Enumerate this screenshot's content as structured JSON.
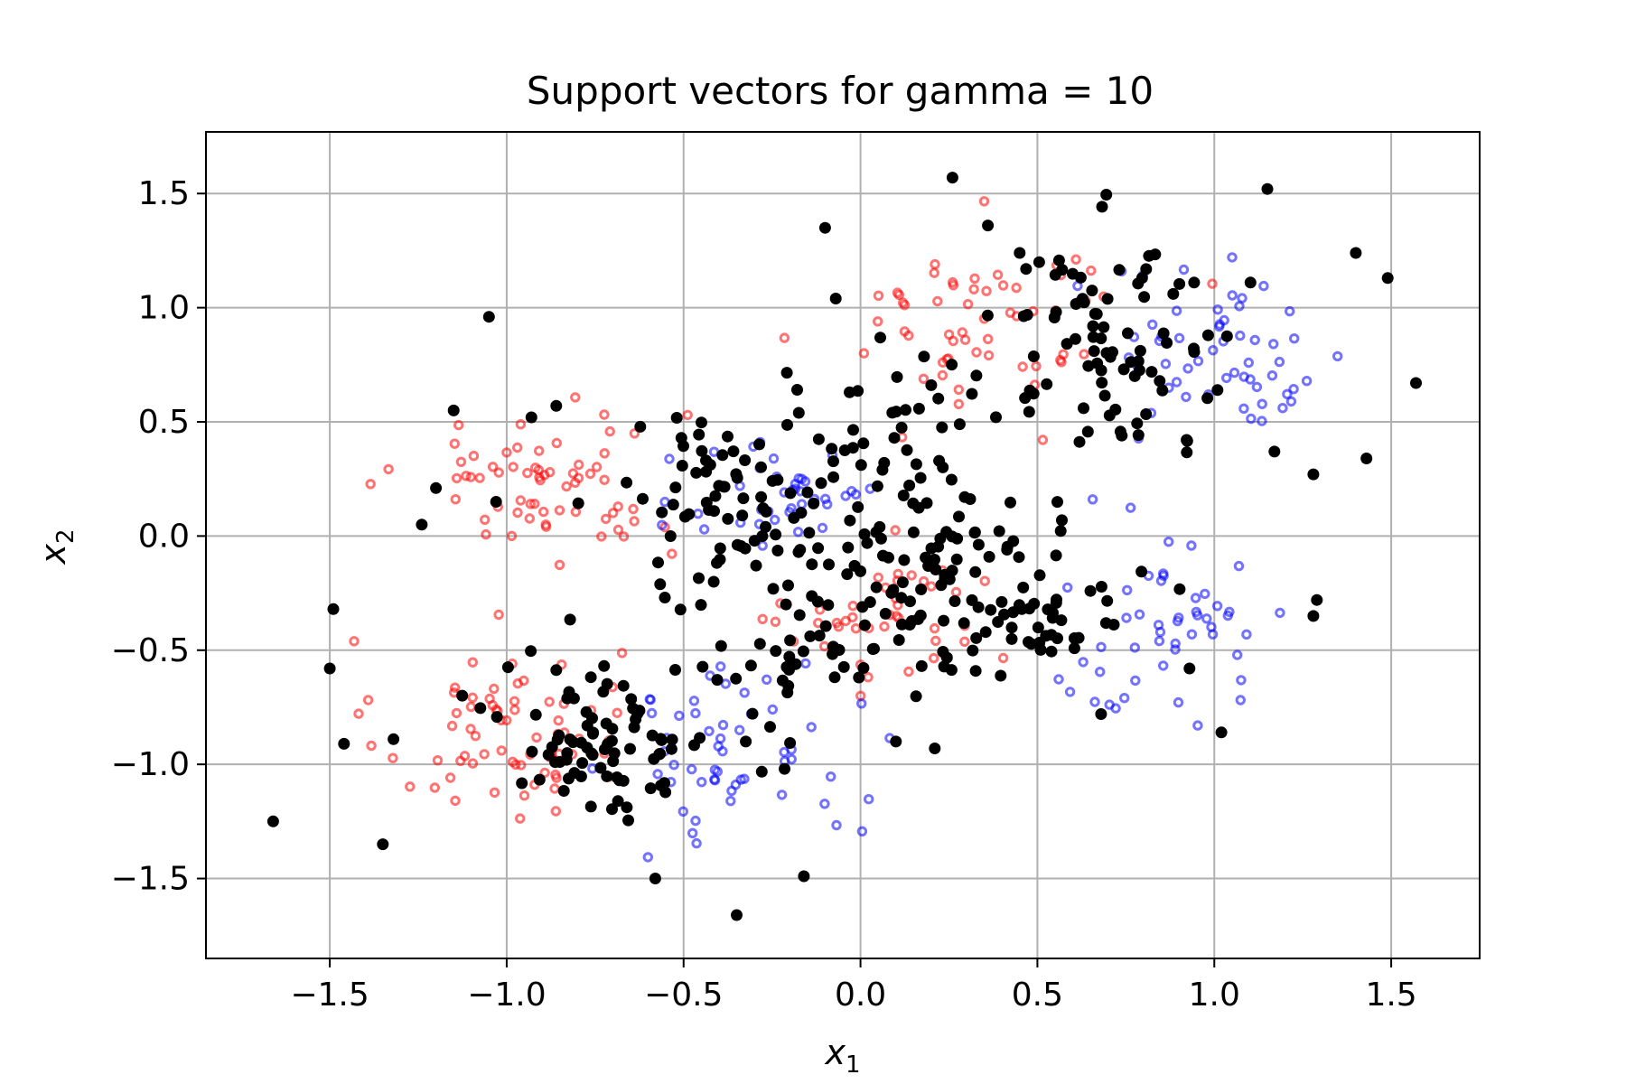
{
  "chart_data": {
    "type": "scatter",
    "title": "Support vectors for gamma = 10",
    "xlabel": "x",
    "xlabel_sub": "1",
    "ylabel": "x",
    "ylabel_sub": "2",
    "xlim": [
      -1.85,
      1.75
    ],
    "ylim": [
      -1.85,
      1.77
    ],
    "grid": true,
    "legend": "none",
    "xticks": [
      -1.5,
      -1.0,
      -0.5,
      0.0,
      0.5,
      1.0,
      1.5
    ],
    "xtick_labels": [
      "−1.5",
      "−1.0",
      "−0.5",
      "0.0",
      "0.5",
      "1.0",
      "1.5"
    ],
    "yticks": [
      -1.5,
      -1.0,
      -0.5,
      0.0,
      0.5,
      1.0,
      1.5
    ],
    "ytick_labels": [
      "−1.5",
      "−1.0",
      "−0.5",
      "0.0",
      "0.5",
      "1.0",
      "1.5"
    ],
    "colors": {
      "class_a": "#ff0000",
      "class_b": "#0000ff",
      "support_vectors": "#000000",
      "grid": "#b0b0b0"
    },
    "clusters": [
      {
        "series": "class_a",
        "center": [
          -1.02,
          -0.85
        ],
        "spread": [
          0.17,
          0.2
        ],
        "n": 70
      },
      {
        "series": "class_a",
        "center": [
          -0.9,
          0.25
        ],
        "spread": [
          0.2,
          0.18
        ],
        "n": 65
      },
      {
        "series": "class_a",
        "center": [
          0.35,
          0.95
        ],
        "spread": [
          0.2,
          0.2
        ],
        "n": 60
      },
      {
        "series": "class_a",
        "center": [
          0.12,
          -0.38
        ],
        "spread": [
          0.16,
          0.15
        ],
        "n": 45
      },
      {
        "series": "class_b",
        "center": [
          -0.35,
          -0.95
        ],
        "spread": [
          0.17,
          0.2
        ],
        "n": 55
      },
      {
        "series": "class_b",
        "center": [
          -0.2,
          0.2
        ],
        "spread": [
          0.14,
          0.18
        ],
        "n": 40
      },
      {
        "series": "class_b",
        "center": [
          0.85,
          -0.4
        ],
        "spread": [
          0.18,
          0.2
        ],
        "n": 50
      },
      {
        "series": "class_b",
        "center": [
          1.05,
          0.78
        ],
        "spread": [
          0.17,
          0.2
        ],
        "n": 55
      },
      {
        "series": "support_vectors",
        "center": [
          -0.72,
          -0.88
        ],
        "spread": [
          0.15,
          0.17
        ],
        "n": 85
      },
      {
        "series": "support_vectors",
        "center": [
          -0.42,
          0.15
        ],
        "spread": [
          0.13,
          0.22
        ],
        "n": 60
      },
      {
        "series": "support_vectors",
        "center": [
          0.08,
          0.08
        ],
        "spread": [
          0.2,
          0.35
        ],
        "n": 120
      },
      {
        "series": "support_vectors",
        "center": [
          0.42,
          -0.28
        ],
        "spread": [
          0.17,
          0.17
        ],
        "n": 70
      },
      {
        "series": "support_vectors",
        "center": [
          0.72,
          0.85
        ],
        "spread": [
          0.17,
          0.25
        ],
        "n": 85
      },
      {
        "series": "support_vectors",
        "center": [
          -0.2,
          -0.55
        ],
        "spread": [
          0.15,
          0.2
        ],
        "n": 30
      }
    ],
    "outliers": {
      "series": "support_vectors",
      "points": [
        [
          -1.66,
          -1.25
        ],
        [
          -1.35,
          -1.35
        ],
        [
          -1.49,
          -0.32
        ],
        [
          -1.5,
          -0.58
        ],
        [
          -1.46,
          -0.91
        ],
        [
          -1.32,
          -0.89
        ],
        [
          -1.24,
          0.05
        ],
        [
          -1.2,
          0.21
        ],
        [
          -1.15,
          0.55
        ],
        [
          -1.05,
          0.96
        ],
        [
          -1.03,
          0.15
        ],
        [
          -0.93,
          0.52
        ],
        [
          -0.86,
          0.57
        ],
        [
          -0.35,
          -1.66
        ],
        [
          -0.16,
          -1.49
        ],
        [
          -0.58,
          -1.5
        ],
        [
          -0.1,
          1.35
        ],
        [
          -0.07,
          1.04
        ],
        [
          0.26,
          1.57
        ],
        [
          0.36,
          1.36
        ],
        [
          0.45,
          1.24
        ],
        [
          1.15,
          1.52
        ],
        [
          1.4,
          1.24
        ],
        [
          1.49,
          1.13
        ],
        [
          1.57,
          0.67
        ],
        [
          1.43,
          0.34
        ],
        [
          1.28,
          0.27
        ],
        [
          1.29,
          -0.28
        ],
        [
          1.28,
          -0.35
        ],
        [
          1.02,
          -0.86
        ],
        [
          0.68,
          -0.78
        ],
        [
          0.1,
          -0.9
        ],
        [
          0.21,
          -0.93
        ],
        [
          0.93,
          -0.58
        ],
        [
          1.17,
          0.37
        ]
      ]
    }
  }
}
